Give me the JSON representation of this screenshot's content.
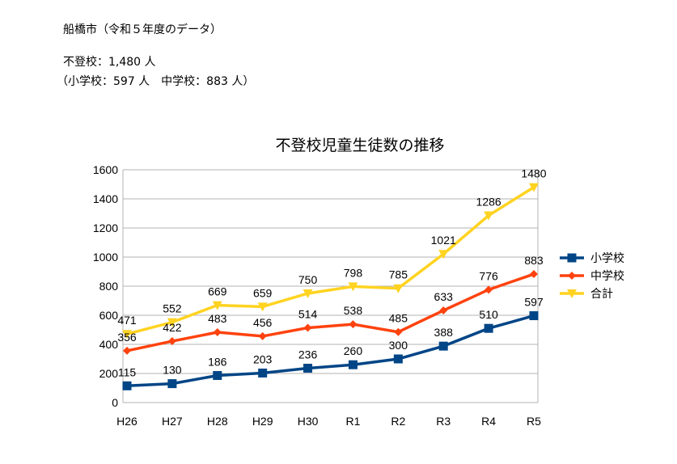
{
  "document": {
    "heading": "船橋市（令和５年度のデータ）",
    "total_line": "不登校：1,480 人",
    "breakdown_line": "（小学校：597 人　中学校：883 人）"
  },
  "chart_data": {
    "type": "line",
    "title": "不登校児童生徒数の推移",
    "categories": [
      "H26",
      "H27",
      "H28",
      "H29",
      "H30",
      "R1",
      "R2",
      "R3",
      "R4",
      "R5"
    ],
    "ylim": [
      0,
      1600
    ],
    "yticks": [
      0,
      200,
      400,
      600,
      800,
      1000,
      1200,
      1400,
      1600
    ],
    "grid": true,
    "legend_position": "right",
    "series": [
      {
        "name": "小学校",
        "color": "#004586",
        "marker": "square",
        "values": [
          115,
          130,
          186,
          203,
          236,
          260,
          300,
          388,
          510,
          597
        ]
      },
      {
        "name": "中学校",
        "color": "#ff420e",
        "marker": "diamond",
        "values": [
          356,
          422,
          483,
          456,
          514,
          538,
          485,
          633,
          776,
          883
        ]
      },
      {
        "name": "合計",
        "color": "#ffd320",
        "marker": "triangle-down",
        "values": [
          471,
          552,
          669,
          659,
          750,
          798,
          785,
          1021,
          1286,
          1480
        ]
      }
    ]
  }
}
